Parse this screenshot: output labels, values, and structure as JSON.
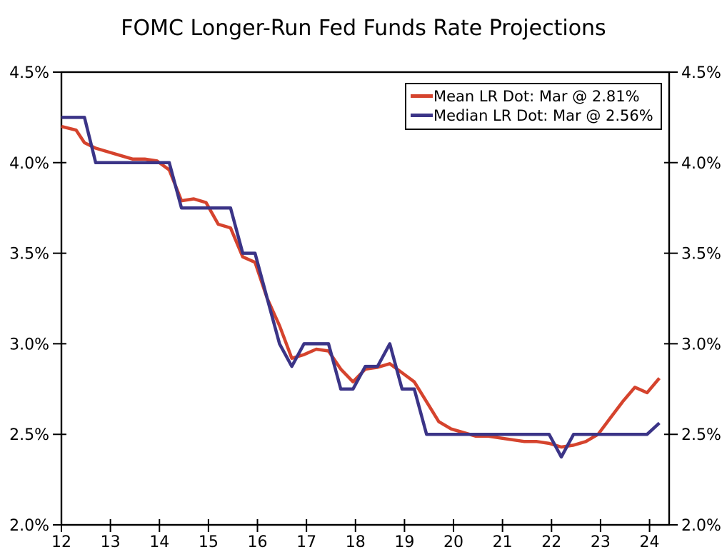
{
  "title": "FOMC Longer-Run Fed Funds Rate Projections",
  "colors": {
    "mean_line": "#d5432d",
    "median_line": "#3b3487",
    "axis": "#000000",
    "background": "#ffffff",
    "text": "#000000"
  },
  "legend": {
    "items": [
      {
        "series": "mean",
        "label": "Mean LR Dot: Mar @ 2.81%",
        "color": "#d5432d"
      },
      {
        "series": "median",
        "label": "Median LR Dot: Mar @ 2.56%",
        "color": "#3b3487"
      }
    ]
  },
  "axes": {
    "x_tick_labels": [
      "12",
      "13",
      "14",
      "15",
      "16",
      "17",
      "18",
      "19",
      "20",
      "21",
      "22",
      "23",
      "24"
    ],
    "y_tick_labels": [
      "2.0%",
      "2.5%",
      "3.0%",
      "3.5%",
      "4.0%",
      "4.5%"
    ]
  },
  "chart_data": {
    "type": "line",
    "title": "FOMC Longer-Run Fed Funds Rate Projections",
    "xlabel": "",
    "ylabel": "",
    "grid": false,
    "legend_position": "top-right",
    "xlim": [
      12,
      24.4
    ],
    "ylim": [
      2.0,
      4.5
    ],
    "x_ticks": [
      12,
      13,
      14,
      15,
      16,
      17,
      18,
      19,
      20,
      21,
      22,
      23,
      24
    ],
    "y_ticks": [
      2.0,
      2.5,
      3.0,
      3.5,
      4.0,
      4.5
    ],
    "x": [
      12.0,
      12.3,
      12.47,
      12.7,
      12.95,
      13.2,
      13.45,
      13.7,
      13.95,
      14.2,
      14.45,
      14.7,
      14.95,
      15.2,
      15.45,
      15.7,
      15.95,
      16.2,
      16.45,
      16.7,
      16.95,
      17.2,
      17.45,
      17.7,
      17.95,
      18.2,
      18.45,
      18.7,
      18.95,
      19.2,
      19.45,
      19.7,
      19.95,
      20.45,
      20.7,
      20.95,
      21.2,
      21.45,
      21.7,
      21.95,
      22.2,
      22.45,
      22.7,
      22.95,
      23.2,
      23.45,
      23.7,
      23.95,
      24.2
    ],
    "series": [
      {
        "name": "Mean LR Dot",
        "color": "#d5432d",
        "values": [
          4.2,
          4.18,
          4.11,
          4.08,
          4.06,
          4.04,
          4.02,
          4.02,
          4.01,
          3.96,
          3.79,
          3.8,
          3.78,
          3.66,
          3.64,
          3.48,
          3.45,
          3.25,
          3.1,
          2.92,
          2.94,
          2.97,
          2.96,
          2.86,
          2.79,
          2.86,
          2.87,
          2.89,
          2.84,
          2.79,
          2.68,
          2.57,
          2.53,
          2.49,
          2.49,
          2.48,
          2.47,
          2.46,
          2.46,
          2.45,
          2.43,
          2.44,
          2.46,
          2.5,
          2.59,
          2.68,
          2.76,
          2.73,
          2.81
        ]
      },
      {
        "name": "Median LR Dot",
        "color": "#3b3487",
        "values": [
          4.25,
          4.25,
          4.25,
          4.0,
          4.0,
          4.0,
          4.0,
          4.0,
          4.0,
          4.0,
          3.75,
          3.75,
          3.75,
          3.75,
          3.75,
          3.5,
          3.5,
          3.25,
          3.0,
          2.875,
          3.0,
          3.0,
          3.0,
          2.75,
          2.75,
          2.875,
          2.875,
          3.0,
          2.75,
          2.75,
          2.5,
          2.5,
          2.5,
          2.5,
          2.5,
          2.5,
          2.5,
          2.5,
          2.5,
          2.5,
          2.375,
          2.5,
          2.5,
          2.5,
          2.5,
          2.5,
          2.5,
          2.5,
          2.5625
        ]
      }
    ]
  }
}
